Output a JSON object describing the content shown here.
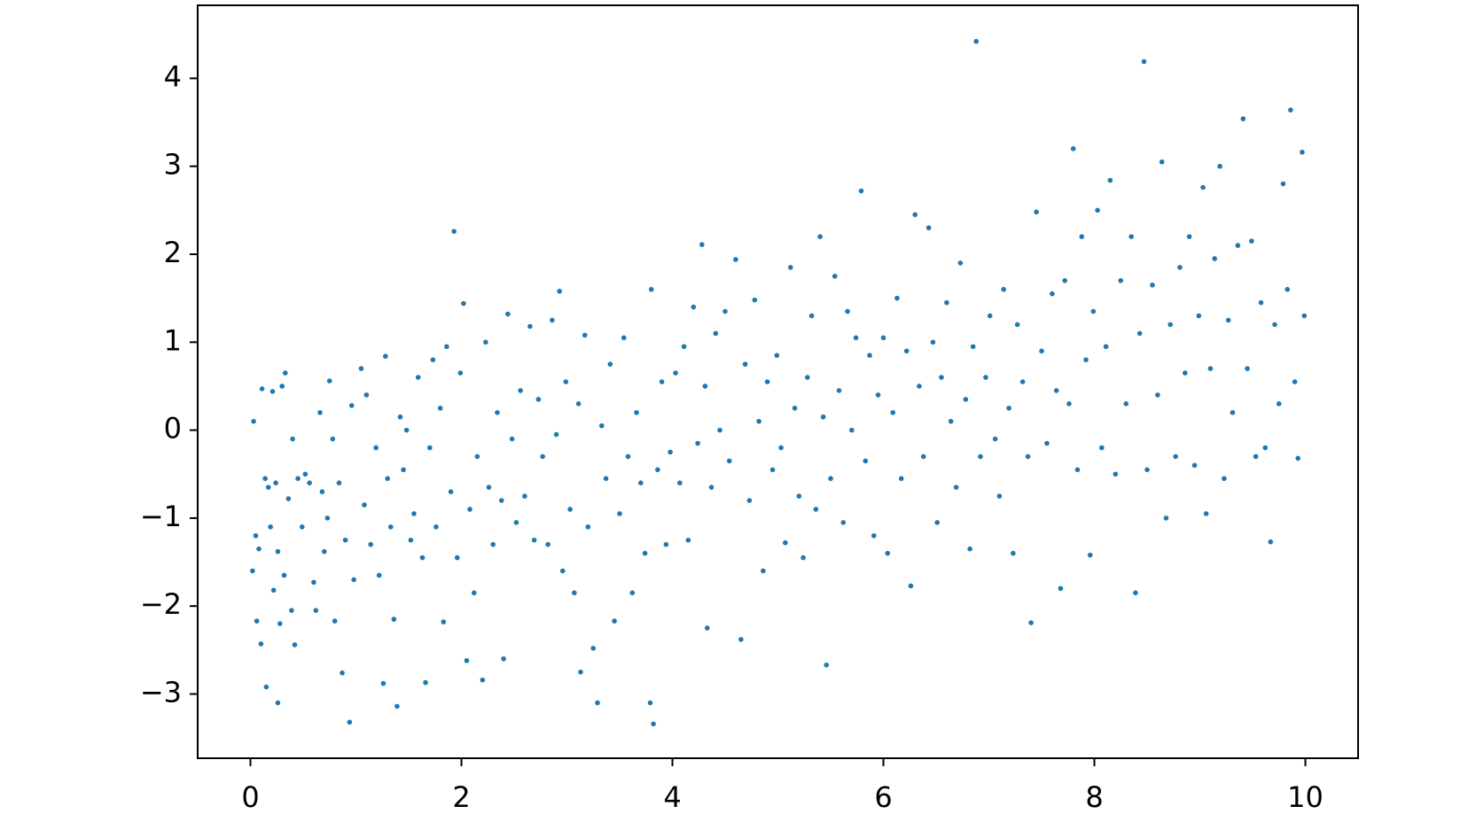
{
  "chart_data": {
    "type": "scatter",
    "x": [
      0.02,
      0.03,
      0.05,
      0.06,
      0.08,
      0.1,
      0.11,
      0.14,
      0.15,
      0.17,
      0.19,
      0.21,
      0.22,
      0.24,
      0.26,
      0.26,
      0.28,
      0.3,
      0.32,
      0.33,
      0.36,
      0.39,
      0.4,
      0.42,
      0.45,
      0.49,
      0.52,
      0.56,
      0.6,
      0.62,
      0.66,
      0.68,
      0.7,
      0.73,
      0.75,
      0.78,
      0.8,
      0.84,
      0.87,
      0.9,
      0.94,
      0.96,
      0.98,
      1.05,
      1.08,
      1.1,
      1.14,
      1.19,
      1.22,
      1.26,
      1.28,
      1.3,
      1.33,
      1.36,
      1.39,
      1.42,
      1.45,
      1.48,
      1.52,
      1.55,
      1.59,
      1.63,
      1.66,
      1.7,
      1.73,
      1.76,
      1.8,
      1.83,
      1.86,
      1.9,
      1.93,
      1.96,
      1.99,
      2.02,
      2.05,
      2.08,
      2.12,
      2.15,
      2.2,
      2.23,
      2.26,
      2.3,
      2.34,
      2.38,
      2.4,
      2.44,
      2.48,
      2.52,
      2.56,
      2.6,
      2.65,
      2.69,
      2.73,
      2.77,
      2.82,
      2.86,
      2.9,
      2.93,
      2.96,
      2.99,
      3.03,
      3.07,
      3.11,
      3.13,
      3.17,
      3.2,
      3.25,
      3.29,
      3.33,
      3.37,
      3.41,
      3.45,
      3.5,
      3.54,
      3.58,
      3.62,
      3.66,
      3.7,
      3.74,
      3.79,
      3.8,
      3.82,
      3.86,
      3.9,
      3.94,
      3.98,
      4.03,
      4.07,
      4.11,
      4.15,
      4.2,
      4.24,
      4.28,
      4.31,
      4.33,
      4.37,
      4.41,
      4.45,
      4.5,
      4.54,
      4.6,
      4.65,
      4.69,
      4.73,
      4.78,
      4.82,
      4.86,
      4.9,
      4.95,
      4.99,
      5.03,
      5.07,
      5.12,
      5.16,
      5.2,
      5.24,
      5.28,
      5.32,
      5.36,
      5.4,
      5.43,
      5.46,
      5.5,
      5.54,
      5.58,
      5.62,
      5.66,
      5.7,
      5.74,
      5.79,
      5.83,
      5.87,
      5.91,
      5.95,
      6.0,
      6.04,
      6.09,
      6.13,
      6.17,
      6.22,
      6.26,
      6.3,
      6.34,
      6.38,
      6.43,
      6.47,
      6.51,
      6.55,
      6.6,
      6.64,
      6.69,
      6.73,
      6.78,
      6.82,
      6.85,
      6.88,
      6.92,
      6.97,
      7.01,
      7.06,
      7.1,
      7.14,
      7.19,
      7.23,
      7.27,
      7.32,
      7.37,
      7.4,
      7.45,
      7.5,
      7.55,
      7.6,
      7.64,
      7.68,
      7.72,
      7.76,
      7.8,
      7.84,
      7.88,
      7.92,
      7.96,
      7.99,
      8.03,
      8.07,
      8.11,
      8.15,
      8.2,
      8.25,
      8.3,
      8.35,
      8.39,
      8.43,
      8.47,
      8.5,
      8.55,
      8.6,
      8.64,
      8.68,
      8.72,
      8.77,
      8.81,
      8.86,
      8.9,
      8.95,
      8.99,
      9.03,
      9.06,
      9.1,
      9.14,
      9.19,
      9.23,
      9.27,
      9.31,
      9.36,
      9.41,
      9.45,
      9.49,
      9.53,
      9.58,
      9.62,
      9.67,
      9.71,
      9.75,
      9.79,
      9.83,
      9.86,
      9.9,
      9.93,
      9.97,
      9.99
    ],
    "values": [
      -1.6,
      0.1,
      -1.2,
      -2.17,
      -1.35,
      -2.43,
      0.47,
      -0.55,
      -2.92,
      -0.65,
      -1.1,
      0.44,
      -1.82,
      -0.6,
      -1.38,
      -3.1,
      -2.2,
      0.5,
      -1.65,
      0.65,
      -0.78,
      -2.05,
      -0.1,
      -2.44,
      -0.55,
      -1.1,
      -0.5,
      -0.6,
      -1.73,
      -2.05,
      0.2,
      -0.7,
      -1.38,
      -1.0,
      0.56,
      -0.1,
      -2.17,
      -0.6,
      -2.76,
      -1.25,
      -3.32,
      0.28,
      -1.7,
      0.7,
      -0.85,
      0.4,
      -1.3,
      -0.2,
      -1.65,
      -2.88,
      0.84,
      -0.55,
      -1.1,
      -2.15,
      -3.14,
      0.15,
      -0.45,
      0.0,
      -1.25,
      -0.95,
      0.6,
      -1.45,
      -2.87,
      -0.2,
      0.8,
      -1.1,
      0.25,
      -2.18,
      0.95,
      -0.7,
      2.26,
      -1.45,
      0.65,
      1.44,
      -2.62,
      -0.9,
      -1.85,
      -0.3,
      -2.84,
      1.0,
      -0.65,
      -1.3,
      0.2,
      -0.8,
      -2.6,
      1.32,
      -0.1,
      -1.05,
      0.45,
      -0.75,
      1.18,
      -1.25,
      0.35,
      -0.3,
      -1.3,
      1.25,
      -0.05,
      1.58,
      -1.6,
      0.55,
      -0.9,
      -1.85,
      0.3,
      -2.75,
      1.08,
      -1.1,
      -2.48,
      -3.1,
      0.05,
      -0.55,
      0.75,
      -2.17,
      -0.95,
      1.05,
      -0.3,
      -1.85,
      0.2,
      -0.6,
      -1.4,
      -3.1,
      1.6,
      -3.34,
      -0.45,
      0.55,
      -1.3,
      -0.25,
      0.65,
      -0.6,
      0.95,
      -1.25,
      1.4,
      -0.15,
      2.11,
      0.5,
      -2.25,
      -0.65,
      1.1,
      0.0,
      1.35,
      -0.35,
      1.94,
      -2.38,
      0.75,
      -0.8,
      1.48,
      0.1,
      -1.6,
      0.55,
      -0.45,
      0.85,
      -0.2,
      -1.28,
      1.85,
      0.25,
      -0.75,
      -1.45,
      0.6,
      1.3,
      -0.9,
      2.2,
      0.15,
      -2.67,
      -0.55,
      1.75,
      0.45,
      -1.05,
      1.35,
      0.0,
      1.05,
      2.72,
      -0.35,
      0.85,
      -1.2,
      0.4,
      1.05,
      -1.4,
      0.2,
      1.5,
      -0.55,
      0.9,
      -1.77,
      2.45,
      0.5,
      -0.3,
      2.3,
      1.0,
      -1.05,
      0.6,
      1.45,
      0.1,
      -0.65,
      1.9,
      0.35,
      -1.35,
      0.95,
      4.42,
      -0.3,
      0.6,
      1.3,
      -0.1,
      -0.75,
      1.6,
      0.25,
      -1.4,
      1.2,
      0.55,
      -0.3,
      -2.19,
      2.48,
      0.9,
      -0.15,
      1.55,
      0.45,
      -1.8,
      1.7,
      0.3,
      3.2,
      -0.45,
      2.2,
      0.8,
      -1.42,
      1.35,
      2.5,
      -0.2,
      0.95,
      2.84,
      -0.5,
      1.7,
      0.3,
      2.2,
      -1.85,
      1.1,
      4.19,
      -0.45,
      1.65,
      0.4,
      3.05,
      -1.0,
      1.2,
      -0.3,
      1.85,
      0.65,
      2.2,
      -0.4,
      1.3,
      2.76,
      -0.95,
      0.7,
      1.95,
      3.0,
      -0.55,
      1.25,
      0.2,
      2.1,
      3.54,
      0.7,
      2.15,
      -0.3,
      1.45,
      -0.2,
      -1.27,
      1.2,
      0.3,
      2.8,
      1.6,
      3.64,
      0.55,
      -0.32,
      3.16,
      1.3
    ],
    "color": "#1f77b4",
    "xlim": [
      -0.5,
      10.5
    ],
    "ylim": [
      -3.73,
      4.83
    ],
    "xticks": [
      0,
      2,
      4,
      6,
      8,
      10
    ],
    "yticks": [
      {
        "value": -3,
        "label": "−3"
      },
      {
        "value": -2,
        "label": "−2"
      },
      {
        "value": -1,
        "label": "−1"
      },
      0,
      1,
      2,
      3,
      4
    ],
    "grid": false
  }
}
